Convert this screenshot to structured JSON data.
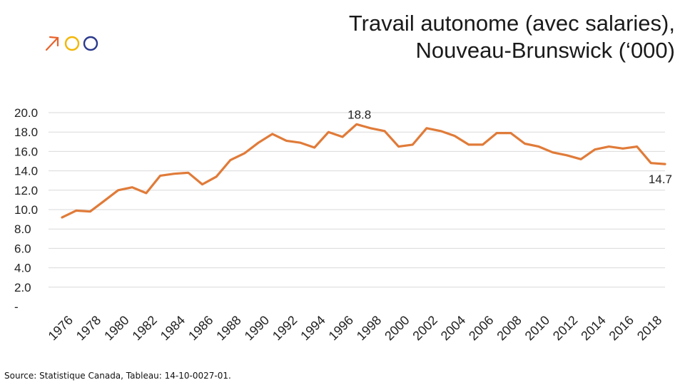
{
  "header": {
    "title_line1": "Travail autonome (avec salaries),",
    "title_line2": "Nouveau-Brunswick (‘000)"
  },
  "logo": {
    "icon": "arrow-and-circles-logo",
    "colors": [
      "#e8622c",
      "#f2b705",
      "#2b3a8c"
    ]
  },
  "footer": {
    "source": "Source: Statistique Canada, Tableau: 14-10-0027-01."
  },
  "chart_data": {
    "type": "line",
    "title": "Travail autonome (avec salaries), Nouveau-Brunswick (‘000)",
    "xlabel": "",
    "ylabel": "",
    "ylim": [
      0,
      20
    ],
    "yticks": [
      "-",
      "2.0",
      "4.0",
      "6.0",
      "8.0",
      "10.0",
      "12.0",
      "14.0",
      "16.0",
      "18.0",
      "20.0"
    ],
    "xtick_labels": [
      "1976",
      "1978",
      "1980",
      "1982",
      "1984",
      "1986",
      "1988",
      "1990",
      "1992",
      "1994",
      "1996",
      "1998",
      "2000",
      "2002",
      "2004",
      "2006",
      "2008",
      "2010",
      "2012",
      "2014",
      "2016",
      "2018"
    ],
    "grid": true,
    "line_color": "#e07b39",
    "x": [
      1976,
      1977,
      1978,
      1979,
      1980,
      1981,
      1982,
      1983,
      1984,
      1985,
      1986,
      1987,
      1988,
      1989,
      1990,
      1991,
      1992,
      1993,
      1994,
      1995,
      1996,
      1997,
      1998,
      1999,
      2000,
      2001,
      2002,
      2003,
      2004,
      2005,
      2006,
      2007,
      2008,
      2009,
      2010,
      2011,
      2012,
      2013,
      2014,
      2015,
      2016,
      2017,
      2018,
      2019
    ],
    "series": [
      {
        "values": [
          9.2,
          9.9,
          9.8,
          10.9,
          12.0,
          12.3,
          11.7,
          13.5,
          13.7,
          13.8,
          12.6,
          13.4,
          15.1,
          15.8,
          16.9,
          17.8,
          17.1,
          16.9,
          16.4,
          18.0,
          17.5,
          18.8,
          18.4,
          18.1,
          16.5,
          16.7,
          18.4,
          18.1,
          17.6,
          16.7,
          16.7,
          17.9,
          17.9,
          16.8,
          16.5,
          15.9,
          15.6,
          15.2,
          16.2,
          16.5,
          16.3,
          16.5,
          14.8,
          14.7
        ]
      }
    ],
    "annotations": [
      {
        "x": 1997,
        "label": "18.8"
      },
      {
        "x": 2019,
        "label": "14.7"
      }
    ]
  }
}
